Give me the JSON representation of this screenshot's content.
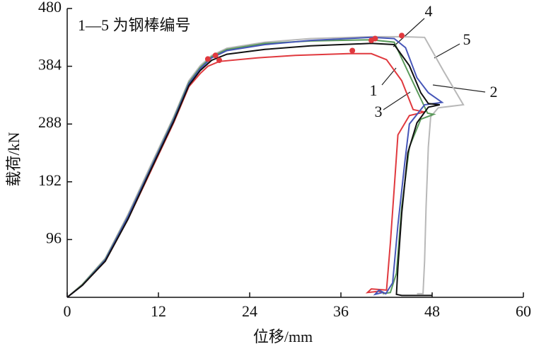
{
  "chart_data": {
    "type": "line",
    "xlabel": "位移/mm",
    "ylabel": "载荷/kN",
    "annotations": [
      "1—5 为钢棒编号",
      "1",
      "2",
      "3",
      "4",
      "5"
    ],
    "xlim": [
      0,
      60
    ],
    "xticks": [
      0,
      12,
      24,
      36,
      48,
      60
    ],
    "ylim": [
      0,
      480
    ],
    "yticks": [
      96,
      192,
      288,
      384,
      480
    ],
    "series": [
      {
        "name": "1",
        "color": "#e0393e",
        "x": [
          0,
          2,
          5,
          8,
          11,
          14,
          16,
          17.5,
          18.5,
          20,
          25,
          30,
          37,
          40,
          42,
          44,
          45.5,
          47,
          45,
          43.5,
          43,
          42.5,
          42,
          40,
          39.5,
          41,
          42
        ],
        "values": [
          0,
          20,
          60,
          130,
          210,
          290,
          350,
          372,
          384,
          392,
          398,
          402,
          405,
          405,
          395,
          360,
          312,
          308,
          302,
          270,
          180,
          90,
          12,
          14,
          8,
          10,
          6
        ]
      },
      {
        "name": "2",
        "color": "#4656b8",
        "x": [
          0,
          2,
          5,
          8,
          11,
          14,
          16,
          17.5,
          19,
          21,
          26,
          32,
          40,
          43,
          44.5,
          46,
          47.5,
          49.3,
          47,
          45,
          44.4,
          43.5,
          42.8,
          41.9,
          41,
          40.5,
          41.5
        ],
        "values": [
          0,
          20,
          62,
          134,
          215,
          295,
          355,
          380,
          398,
          410,
          420,
          427,
          432,
          430,
          415,
          365,
          340,
          324,
          320,
          288,
          224,
          120,
          24,
          6,
          12,
          5,
          8
        ]
      },
      {
        "name": "3",
        "color": "#5a9a5a",
        "x": [
          0,
          2,
          5,
          8,
          11,
          14,
          16,
          17.5,
          19,
          21,
          26,
          32,
          40,
          43,
          45,
          46.5,
          47.4,
          48.2,
          46.5,
          45,
          44,
          43.3,
          42.5,
          41.5
        ],
        "values": [
          0,
          21,
          63,
          135,
          216,
          297,
          357,
          382,
          400,
          412,
          422,
          426,
          428,
          424,
          370,
          330,
          306,
          304,
          296,
          250,
          150,
          40,
          8,
          6
        ]
      },
      {
        "name": "4",
        "color": "#111111",
        "x": [
          0,
          2,
          5,
          8,
          11,
          14,
          16,
          17.5,
          19,
          21,
          26,
          32,
          40,
          43,
          45,
          46.5,
          47.5,
          49,
          47.5,
          46,
          44.8,
          44,
          43.5,
          43.3,
          44,
          48
        ],
        "values": [
          0,
          20,
          60,
          130,
          212,
          292,
          352,
          377,
          394,
          404,
          412,
          418,
          422,
          420,
          385,
          340,
          322,
          320,
          316,
          290,
          240,
          140,
          50,
          5,
          3,
          3
        ]
      },
      {
        "name": "5",
        "color": "#b8b8b8",
        "x": [
          0,
          2,
          5,
          8,
          11,
          14,
          16,
          17.5,
          19,
          21,
          26,
          32,
          40,
          44,
          47,
          49.5,
          52.1,
          48.8,
          47.8,
          47.5,
          47.2,
          47,
          46.8,
          46
        ],
        "values": [
          0,
          22,
          65,
          138,
          220,
          300,
          360,
          385,
          402,
          414,
          424,
          430,
          433,
          433,
          432,
          376,
          320,
          315,
          300,
          250,
          150,
          60,
          6,
          6
        ]
      }
    ],
    "markers": {
      "color": "#e0393e",
      "x": [
        18.5,
        19.5,
        20,
        37.5,
        40,
        40.5,
        44
      ],
      "y": [
        396,
        402,
        394,
        410,
        427,
        430,
        435
      ]
    }
  }
}
